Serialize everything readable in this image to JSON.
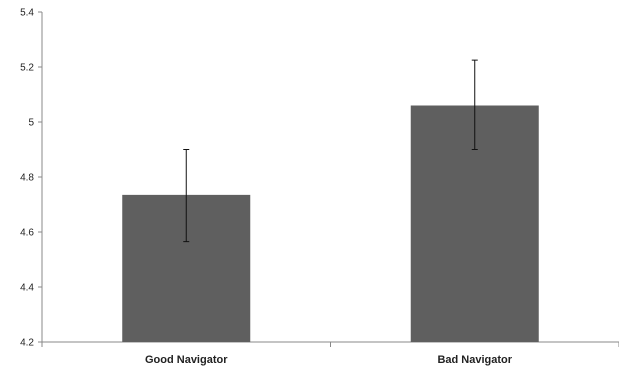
{
  "chart_data": {
    "type": "bar",
    "title": "",
    "xlabel": "",
    "ylabel": "",
    "categories": [
      "Good Navigator",
      "Bad Navigator"
    ],
    "values": [
      4.735,
      5.06
    ],
    "error_bars": [
      {
        "low": 4.565,
        "high": 4.9
      },
      {
        "low": 4.9,
        "high": 5.225
      }
    ],
    "ylim": [
      4.2,
      5.4
    ],
    "yticks": [
      4.2,
      4.4,
      4.6,
      4.8,
      5,
      5.2,
      5.4
    ],
    "ytick_labels": [
      "4.2",
      "4.4",
      "4.6",
      "4.8",
      "5",
      "5.2",
      "5.4"
    ],
    "bar_color": "#5f5f5f",
    "grid": false,
    "legend": "none"
  }
}
